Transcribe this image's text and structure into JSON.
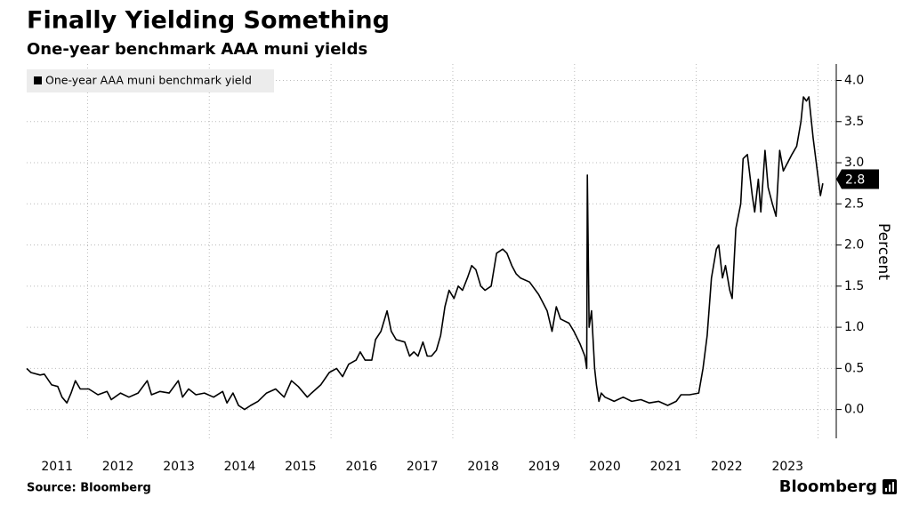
{
  "chart_data": {
    "type": "line",
    "title": "Finally Yielding Something",
    "subtitle": "One-year benchmark AAA muni yields",
    "y_axis_label": "Percent",
    "source": "Source: Bloomberg",
    "brand": "Bloomberg",
    "xlim": [
      2011.0,
      2024.3
    ],
    "ylim": [
      -0.35,
      4.2
    ],
    "xticks": [
      {
        "value": 2011.5,
        "label": "2011"
      },
      {
        "value": 2012.5,
        "label": "2012"
      },
      {
        "value": 2013.5,
        "label": "2013"
      },
      {
        "value": 2014.5,
        "label": "2014"
      },
      {
        "value": 2015.5,
        "label": "2015"
      },
      {
        "value": 2016.5,
        "label": "2016"
      },
      {
        "value": 2017.5,
        "label": "2017"
      },
      {
        "value": 2018.5,
        "label": "2018"
      },
      {
        "value": 2019.5,
        "label": "2019"
      },
      {
        "value": 2020.5,
        "label": "2020"
      },
      {
        "value": 2021.5,
        "label": "2021"
      },
      {
        "value": 2022.5,
        "label": "2022"
      },
      {
        "value": 2023.5,
        "label": "2023"
      }
    ],
    "xgrid": [
      2012,
      2014,
      2016,
      2018,
      2020,
      2022,
      2024
    ],
    "yticks": [
      {
        "value": 0,
        "label": "0.0"
      },
      {
        "value": 0.5,
        "label": "0.5"
      },
      {
        "value": 1,
        "label": "1.0"
      },
      {
        "value": 1.5,
        "label": "1.5"
      },
      {
        "value": 2,
        "label": "2.0"
      },
      {
        "value": 2.5,
        "label": "2.5"
      },
      {
        "value": 3,
        "label": "3.0"
      },
      {
        "value": 3.5,
        "label": "3.5"
      },
      {
        "value": 4,
        "label": "4.0"
      }
    ],
    "grid": true,
    "y_axis_side": "right",
    "legend": "top-left",
    "last_value": 2.8,
    "series": [
      {
        "name": "One-year AAA muni benchmark yield",
        "color": "#000000",
        "x": [
          2011.0,
          2011.07,
          2011.22,
          2011.29,
          2011.41,
          2011.51,
          2011.58,
          2011.66,
          2011.73,
          2011.8,
          2011.88,
          2012.02,
          2012.17,
          2012.32,
          2012.39,
          2012.54,
          2012.68,
          2012.83,
          2012.98,
          2013.05,
          2013.19,
          2013.34,
          2013.49,
          2013.56,
          2013.66,
          2013.78,
          2013.92,
          2014.07,
          2014.22,
          2014.29,
          2014.39,
          2014.48,
          2014.58,
          2014.68,
          2014.8,
          2014.94,
          2015.09,
          2015.23,
          2015.35,
          2015.46,
          2015.61,
          2015.68,
          2015.83,
          2015.97,
          2016.09,
          2016.19,
          2016.29,
          2016.41,
          2016.48,
          2016.56,
          2016.67,
          2016.73,
          2016.82,
          2016.92,
          2016.99,
          2017.07,
          2017.21,
          2017.29,
          2017.36,
          2017.43,
          2017.51,
          2017.58,
          2017.65,
          2017.73,
          2017.8,
          2017.87,
          2017.94,
          2018.02,
          2018.09,
          2018.16,
          2018.24,
          2018.31,
          2018.38,
          2018.46,
          2018.53,
          2018.63,
          2018.72,
          2018.82,
          2018.89,
          2018.97,
          2019.04,
          2019.11,
          2019.26,
          2019.41,
          2019.48,
          2019.55,
          2019.63,
          2019.7,
          2019.77,
          2019.91,
          2019.99,
          2020.09,
          2020.17,
          2020.2,
          2020.21,
          2020.24,
          2020.28,
          2020.33,
          2020.36,
          2020.4,
          2020.44,
          2020.5,
          2020.65,
          2020.8,
          2020.94,
          2021.09,
          2021.23,
          2021.38,
          2021.53,
          2021.67,
          2021.75,
          2021.89,
          2022.04,
          2022.11,
          2022.18,
          2022.25,
          2022.33,
          2022.37,
          2022.43,
          2022.48,
          2022.55,
          2022.59,
          2022.65,
          2022.73,
          2022.77,
          2022.84,
          2022.92,
          2022.96,
          2023.02,
          2023.06,
          2023.13,
          2023.18,
          2023.25,
          2023.31,
          2023.37,
          2023.43,
          2023.5,
          2023.57,
          2023.65,
          2023.72,
          2023.76,
          2023.81,
          2023.85,
          2023.92,
          2023.98,
          2024.04,
          2024.08
        ],
        "values": [
          0.5,
          0.45,
          0.42,
          0.43,
          0.3,
          0.28,
          0.15,
          0.08,
          0.2,
          0.35,
          0.25,
          0.25,
          0.18,
          0.22,
          0.12,
          0.2,
          0.15,
          0.2,
          0.35,
          0.18,
          0.22,
          0.2,
          0.35,
          0.15,
          0.25,
          0.18,
          0.2,
          0.15,
          0.22,
          0.08,
          0.2,
          0.05,
          0.0,
          0.05,
          0.1,
          0.2,
          0.25,
          0.15,
          0.35,
          0.28,
          0.15,
          0.2,
          0.3,
          0.45,
          0.5,
          0.4,
          0.55,
          0.6,
          0.7,
          0.6,
          0.6,
          0.85,
          0.95,
          1.2,
          0.95,
          0.85,
          0.82,
          0.65,
          0.7,
          0.65,
          0.82,
          0.65,
          0.65,
          0.72,
          0.9,
          1.25,
          1.45,
          1.35,
          1.5,
          1.45,
          1.6,
          1.75,
          1.7,
          1.5,
          1.45,
          1.5,
          1.9,
          1.95,
          1.9,
          1.75,
          1.65,
          1.6,
          1.55,
          1.4,
          1.3,
          1.2,
          0.95,
          1.25,
          1.1,
          1.05,
          0.95,
          0.8,
          0.65,
          0.5,
          2.85,
          1.0,
          1.2,
          0.5,
          0.3,
          0.1,
          0.2,
          0.15,
          0.1,
          0.15,
          0.1,
          0.12,
          0.08,
          0.1,
          0.05,
          0.1,
          0.18,
          0.18,
          0.2,
          0.5,
          0.9,
          1.6,
          1.95,
          2.0,
          1.6,
          1.75,
          1.45,
          1.35,
          2.2,
          2.5,
          3.05,
          3.1,
          2.6,
          2.4,
          2.8,
          2.4,
          3.15,
          2.7,
          2.5,
          2.35,
          3.15,
          2.9,
          3.0,
          3.1,
          3.2,
          3.5,
          3.8,
          3.75,
          3.8,
          3.3,
          2.95,
          2.6,
          2.75
        ]
      }
    ]
  }
}
